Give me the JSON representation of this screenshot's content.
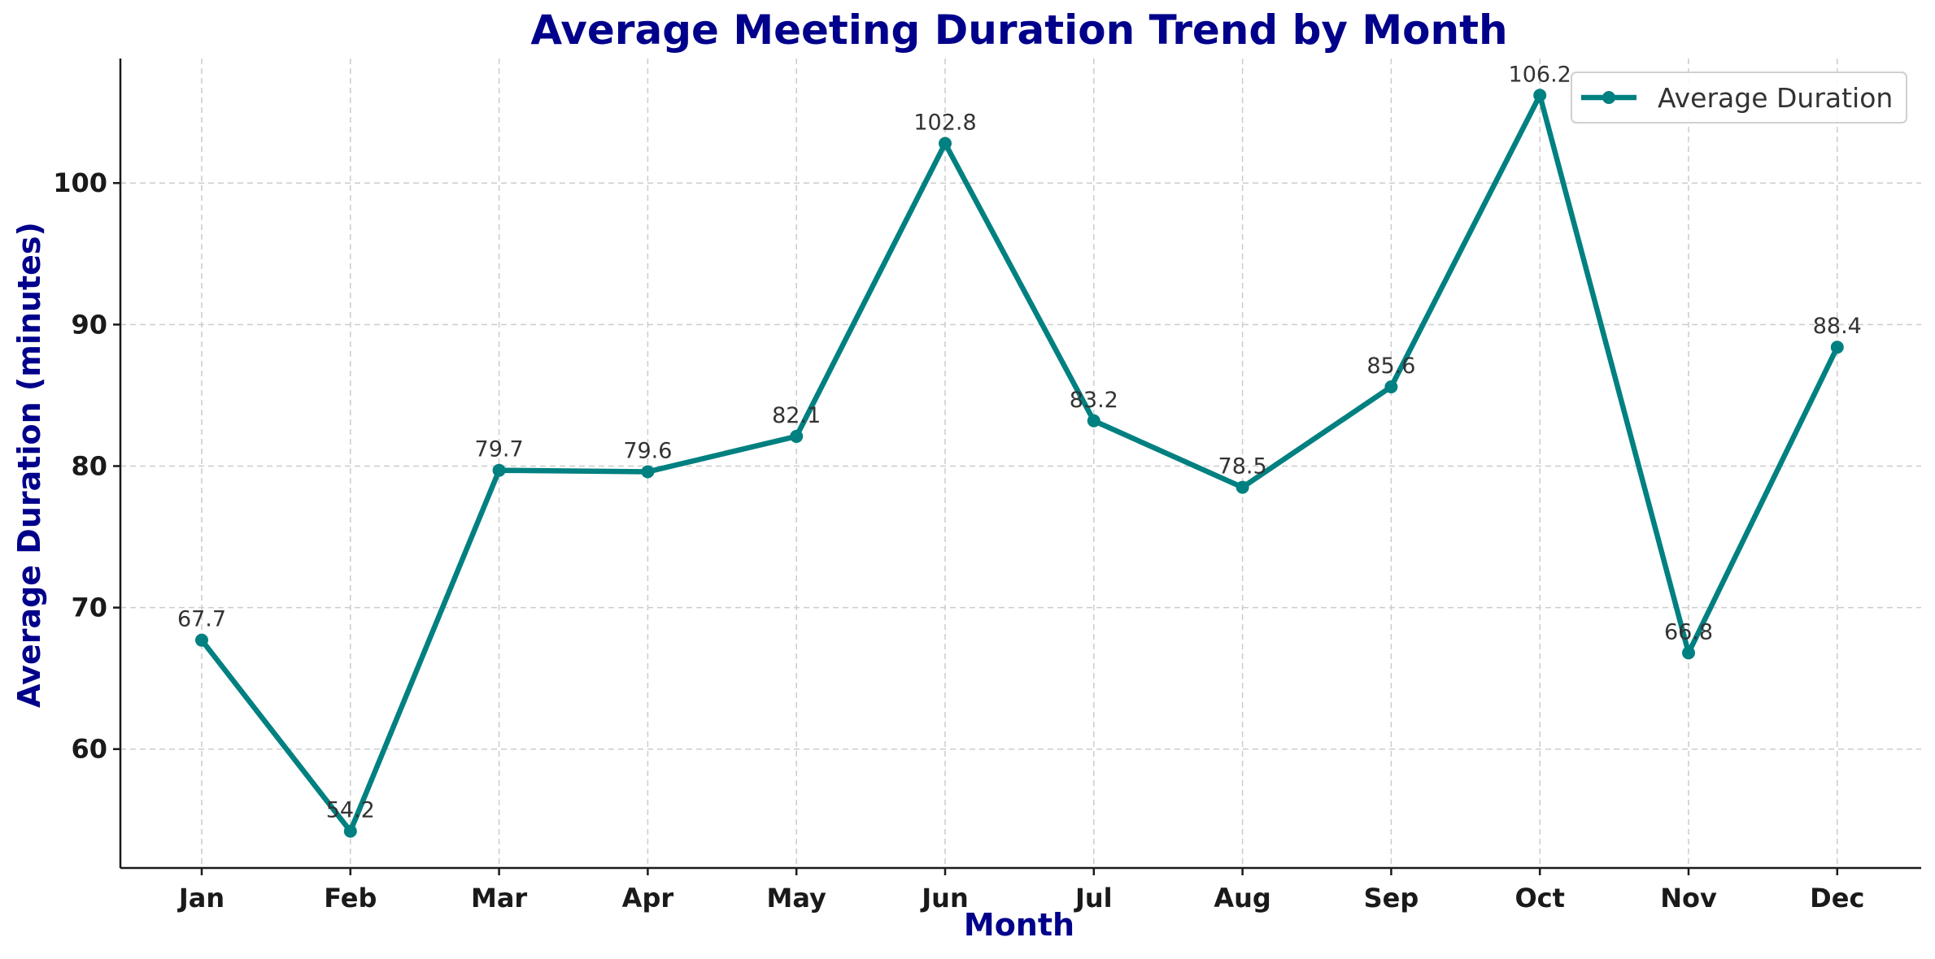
{
  "chart_data": {
    "type": "line",
    "title": "Average Meeting Duration Trend by Month",
    "xlabel": "Month",
    "ylabel": "Average Duration (minutes)",
    "categories": [
      "Jan",
      "Feb",
      "Mar",
      "Apr",
      "May",
      "Jun",
      "Jul",
      "Aug",
      "Sep",
      "Oct",
      "Nov",
      "Dec"
    ],
    "series": [
      {
        "name": "Average Duration",
        "values": [
          67.7,
          54.2,
          79.7,
          79.6,
          82.1,
          102.8,
          83.2,
          78.5,
          85.6,
          106.2,
          66.8,
          88.4
        ],
        "color": "#008080",
        "marker": "circle"
      }
    ],
    "data_labels": [
      "67.7",
      "54.2",
      "79.7",
      "79.6",
      "82.1",
      "102.8",
      "83.2",
      "78.5",
      "85.6",
      "106.2",
      "66.8",
      "88.4"
    ],
    "yticks": [
      60,
      70,
      80,
      90,
      100
    ],
    "ylim": [
      51.6,
      108.8
    ],
    "grid": true,
    "legend_position": "top-right",
    "colors": {
      "title": "#00008B",
      "axis_label": "#00008B",
      "line": "#008080"
    }
  }
}
